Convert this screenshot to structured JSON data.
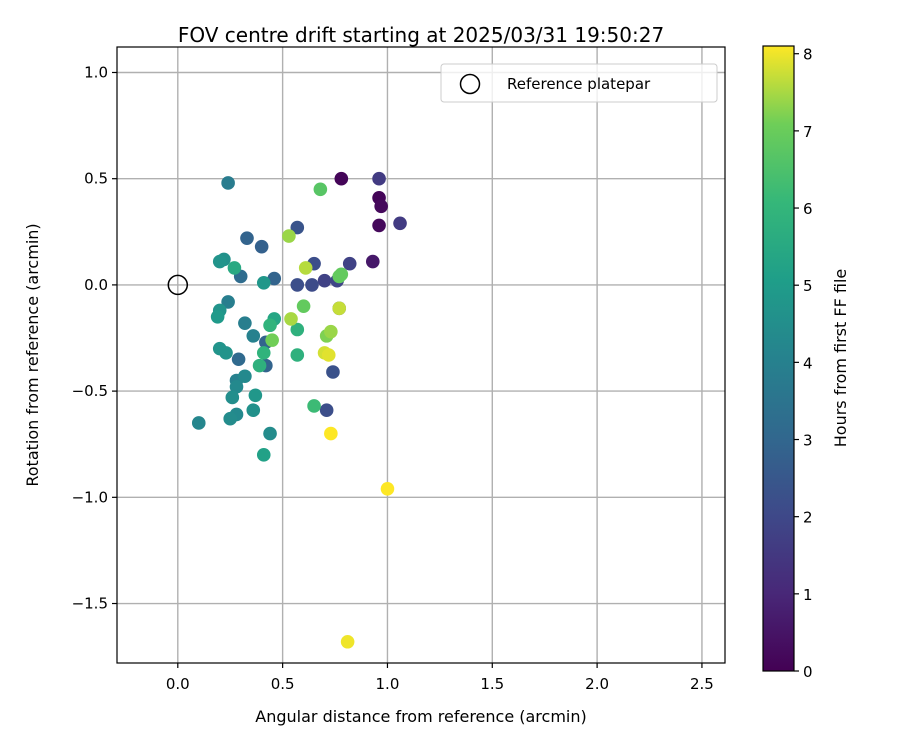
{
  "chart_data": {
    "type": "scatter",
    "title": "FOV centre drift starting at 2025/03/31 19:50:27",
    "xlabel": "Angular distance from reference (arcmin)",
    "ylabel": "Rotation from reference (arcmin)",
    "xlim": [
      -0.29,
      2.61
    ],
    "ylim": [
      -1.78,
      1.12
    ],
    "xticks": [
      0.0,
      0.5,
      1.0,
      1.5,
      2.0,
      2.5
    ],
    "xtick_labels": [
      "0.0",
      "0.5",
      "1.0",
      "1.5",
      "2.0",
      "2.5"
    ],
    "yticks": [
      -1.5,
      -1.0,
      -0.5,
      0.0,
      0.5,
      1.0
    ],
    "ytick_labels": [
      "−1.5",
      "−1.0",
      "−0.5",
      "0.0",
      "0.5",
      "1.0"
    ],
    "grid": true,
    "legend": {
      "placement": "top-right",
      "entries": [
        {
          "label": "Reference platepar",
          "marker": "open-circle"
        }
      ]
    },
    "reference_point": {
      "x": 0.0,
      "y": 0.0
    },
    "colorbar": {
      "label": "Hours from first FF file",
      "range": [
        0,
        8.1
      ],
      "ticks": [
        0,
        1,
        2,
        3,
        4,
        5,
        6,
        7,
        8
      ],
      "tick_labels": [
        "0",
        "1",
        "2",
        "3",
        "4",
        "5",
        "6",
        "7",
        "8"
      ],
      "colormap": "viridis"
    },
    "points": [
      {
        "x": 0.78,
        "y": 0.5,
        "h": 0.1
      },
      {
        "x": 0.96,
        "y": 0.41,
        "h": 0.1
      },
      {
        "x": 0.97,
        "y": 0.37,
        "h": 0.2
      },
      {
        "x": 0.96,
        "y": 0.28,
        "h": 0.2
      },
      {
        "x": 0.93,
        "y": 0.11,
        "h": 0.6
      },
      {
        "x": 0.96,
        "y": 0.5,
        "h": 1.6
      },
      {
        "x": 1.06,
        "y": 0.29,
        "h": 1.6
      },
      {
        "x": 0.82,
        "y": 0.1,
        "h": 1.8
      },
      {
        "x": 0.76,
        "y": 0.02,
        "h": 1.9
      },
      {
        "x": 0.7,
        "y": 0.02,
        "h": 1.8
      },
      {
        "x": 0.64,
        "y": 0.0,
        "h": 2.1
      },
      {
        "x": 0.57,
        "y": 0.0,
        "h": 2.2
      },
      {
        "x": 0.65,
        "y": 0.1,
        "h": 2.2
      },
      {
        "x": 0.57,
        "y": 0.27,
        "h": 2.4
      },
      {
        "x": 0.77,
        "y": -0.11,
        "h": 2.3
      },
      {
        "x": 0.74,
        "y": -0.41,
        "h": 2.3
      },
      {
        "x": 0.71,
        "y": -0.59,
        "h": 2.2
      },
      {
        "x": 0.4,
        "y": 0.18,
        "h": 2.8
      },
      {
        "x": 0.33,
        "y": 0.22,
        "h": 2.9
      },
      {
        "x": 0.46,
        "y": 0.03,
        "h": 2.9
      },
      {
        "x": 0.42,
        "y": -0.27,
        "h": 2.9
      },
      {
        "x": 0.42,
        "y": -0.38,
        "h": 2.9
      },
      {
        "x": 0.3,
        "y": 0.04,
        "h": 3.2
      },
      {
        "x": 0.29,
        "y": -0.35,
        "h": 3.1
      },
      {
        "x": 0.24,
        "y": 0.48,
        "h": 3.8
      },
      {
        "x": 0.24,
        "y": -0.08,
        "h": 3.9
      },
      {
        "x": 0.32,
        "y": -0.18,
        "h": 3.9
      },
      {
        "x": 0.36,
        "y": -0.24,
        "h": 4.0
      },
      {
        "x": 0.28,
        "y": -0.45,
        "h": 4.0
      },
      {
        "x": 0.32,
        "y": -0.43,
        "h": 4.3
      },
      {
        "x": 0.28,
        "y": -0.48,
        "h": 4.3
      },
      {
        "x": 0.26,
        "y": -0.53,
        "h": 4.5
      },
      {
        "x": 0.28,
        "y": -0.61,
        "h": 4.3
      },
      {
        "x": 0.25,
        "y": -0.63,
        "h": 4.4
      },
      {
        "x": 0.1,
        "y": -0.65,
        "h": 4.2
      },
      {
        "x": 0.44,
        "y": -0.7,
        "h": 4.4
      },
      {
        "x": 0.36,
        "y": -0.59,
        "h": 4.6
      },
      {
        "x": 0.37,
        "y": -0.52,
        "h": 4.8
      },
      {
        "x": 0.41,
        "y": -0.8,
        "h": 5.2
      },
      {
        "x": 0.22,
        "y": 0.12,
        "h": 4.6
      },
      {
        "x": 0.2,
        "y": 0.11,
        "h": 4.7
      },
      {
        "x": 0.41,
        "y": 0.01,
        "h": 4.8
      },
      {
        "x": 0.2,
        "y": -0.12,
        "h": 4.7
      },
      {
        "x": 0.19,
        "y": -0.15,
        "h": 4.9
      },
      {
        "x": 0.2,
        "y": -0.3,
        "h": 4.7
      },
      {
        "x": 0.23,
        "y": -0.32,
        "h": 4.7
      },
      {
        "x": 0.27,
        "y": 0.08,
        "h": 5.5
      },
      {
        "x": 0.46,
        "y": -0.16,
        "h": 5.4
      },
      {
        "x": 0.44,
        "y": -0.19,
        "h": 5.9
      },
      {
        "x": 0.41,
        "y": -0.32,
        "h": 5.9
      },
      {
        "x": 0.39,
        "y": -0.38,
        "h": 5.8
      },
      {
        "x": 0.57,
        "y": -0.21,
        "h": 5.8
      },
      {
        "x": 0.57,
        "y": -0.33,
        "h": 5.8
      },
      {
        "x": 0.65,
        "y": -0.57,
        "h": 6.2
      },
      {
        "x": 0.68,
        "y": 0.45,
        "h": 6.7
      },
      {
        "x": 0.78,
        "y": 0.05,
        "h": 6.9
      },
      {
        "x": 0.77,
        "y": 0.04,
        "h": 6.9
      },
      {
        "x": 0.6,
        "y": -0.1,
        "h": 6.9
      },
      {
        "x": 0.45,
        "y": -0.26,
        "h": 7.1
      },
      {
        "x": 0.71,
        "y": -0.24,
        "h": 7.2
      },
      {
        "x": 0.73,
        "y": -0.22,
        "h": 7.4
      },
      {
        "x": 0.53,
        "y": 0.23,
        "h": 7.4
      },
      {
        "x": 0.61,
        "y": 0.08,
        "h": 7.6
      },
      {
        "x": 0.54,
        "y": -0.16,
        "h": 7.5
      },
      {
        "x": 0.77,
        "y": -0.11,
        "h": 7.7
      },
      {
        "x": 0.7,
        "y": -0.32,
        "h": 7.8
      },
      {
        "x": 0.72,
        "y": -0.33,
        "h": 7.9
      },
      {
        "x": 0.73,
        "y": -0.7,
        "h": 8.1
      },
      {
        "x": 1.0,
        "y": -0.96,
        "h": 8.1
      },
      {
        "x": 0.81,
        "y": -1.68,
        "h": 8.0
      }
    ]
  }
}
